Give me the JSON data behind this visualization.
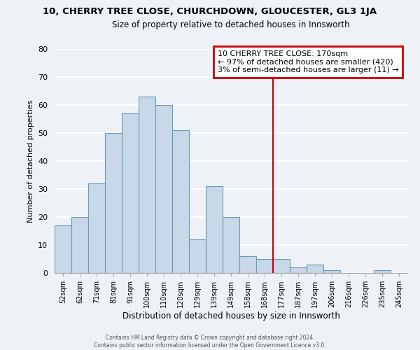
{
  "title1": "10, CHERRY TREE CLOSE, CHURCHDOWN, GLOUCESTER, GL3 1JA",
  "title2": "Size of property relative to detached houses in Innsworth",
  "xlabel": "Distribution of detached houses by size in Innsworth",
  "ylabel": "Number of detached properties",
  "categories": [
    "52sqm",
    "62sqm",
    "71sqm",
    "81sqm",
    "91sqm",
    "100sqm",
    "110sqm",
    "120sqm",
    "129sqm",
    "139sqm",
    "149sqm",
    "158sqm",
    "168sqm",
    "177sqm",
    "187sqm",
    "197sqm",
    "206sqm",
    "216sqm",
    "226sqm",
    "235sqm",
    "245sqm"
  ],
  "values": [
    17,
    20,
    32,
    50,
    57,
    63,
    60,
    51,
    12,
    31,
    20,
    6,
    5,
    5,
    2,
    3,
    1,
    0,
    0,
    1,
    0
  ],
  "bar_color": "#c8d8e8",
  "bar_edge_color": "#6699bb",
  "reference_line_color": "#cc0000",
  "annotation_title": "10 CHERRY TREE CLOSE: 170sqm",
  "annotation_line1": "← 97% of detached houses are smaller (420)",
  "annotation_line2": "3% of semi-detached houses are larger (11) →",
  "annotation_box_color": "#ffffff",
  "annotation_box_edge_color": "#cc0000",
  "ylim": [
    0,
    80
  ],
  "yticks": [
    0,
    10,
    20,
    30,
    40,
    50,
    60,
    70,
    80
  ],
  "footer1": "Contains HM Land Registry data © Crown copyright and database right 2024.",
  "footer2": "Contains public sector information licensed under the Open Government Licence v3.0.",
  "background_color": "#eef2f7",
  "grid_color": "#ffffff"
}
